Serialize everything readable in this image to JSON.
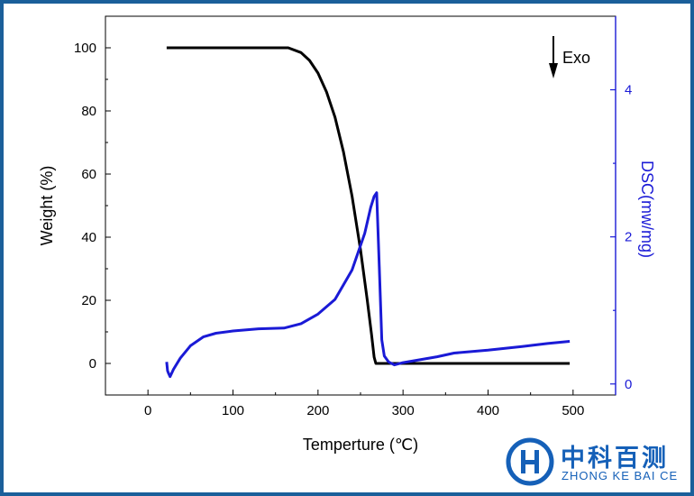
{
  "chart_data": {
    "type": "line",
    "xlabel": "Temperture (℃)",
    "ylabel_left": "Weight (%)",
    "ylabel_right": "DSC(mw/mg)",
    "xlim": [
      -50,
      550
    ],
    "ylim_left": [
      -10,
      110
    ],
    "ylim_right": [
      -0.15,
      5.0
    ],
    "x_ticks": [
      0,
      100,
      200,
      300,
      400,
      500
    ],
    "y_left_ticks": [
      0,
      20,
      40,
      60,
      80,
      100
    ],
    "y_right_ticks": [
      0,
      2,
      4
    ],
    "grid": false,
    "annotation": {
      "text": "Exo",
      "arrow": "down"
    },
    "series": [
      {
        "name": "",
        "axis": "left",
        "color": "#000000",
        "points": [
          [
            22,
            100
          ],
          [
            100,
            100
          ],
          [
            165,
            100
          ],
          [
            180,
            98.5
          ],
          [
            190,
            96
          ],
          [
            200,
            92
          ],
          [
            210,
            86
          ],
          [
            220,
            78
          ],
          [
            230,
            67
          ],
          [
            240,
            53
          ],
          [
            250,
            36
          ],
          [
            258,
            20
          ],
          [
            263,
            9
          ],
          [
            266,
            2
          ],
          [
            268,
            0
          ],
          [
            300,
            0
          ],
          [
            400,
            0
          ],
          [
            496,
            0
          ]
        ]
      },
      {
        "name": "",
        "axis": "right",
        "color": "#1a1ad6",
        "points": [
          [
            22,
            0.3
          ],
          [
            23,
            0.18
          ],
          [
            24,
            0.15
          ],
          [
            26,
            0.1
          ],
          [
            30,
            0.2
          ],
          [
            38,
            0.35
          ],
          [
            50,
            0.52
          ],
          [
            65,
            0.64
          ],
          [
            80,
            0.69
          ],
          [
            100,
            0.72
          ],
          [
            130,
            0.75
          ],
          [
            160,
            0.76
          ],
          [
            180,
            0.82
          ],
          [
            200,
            0.95
          ],
          [
            220,
            1.15
          ],
          [
            240,
            1.55
          ],
          [
            255,
            2.05
          ],
          [
            262,
            2.4
          ],
          [
            266,
            2.55
          ],
          [
            269,
            2.6
          ],
          [
            272,
            1.6
          ],
          [
            275,
            0.6
          ],
          [
            278,
            0.38
          ],
          [
            283,
            0.3
          ],
          [
            290,
            0.26
          ],
          [
            300,
            0.29
          ],
          [
            320,
            0.33
          ],
          [
            340,
            0.37
          ],
          [
            360,
            0.42
          ],
          [
            400,
            0.46
          ],
          [
            440,
            0.51
          ],
          [
            470,
            0.55
          ],
          [
            496,
            0.58
          ]
        ]
      }
    ]
  },
  "logo": {
    "name_cn": "中科百测",
    "name_en": "ZHONG KE BAI CE",
    "color": "#1560b8"
  },
  "frame_color": "#1b5f9a"
}
